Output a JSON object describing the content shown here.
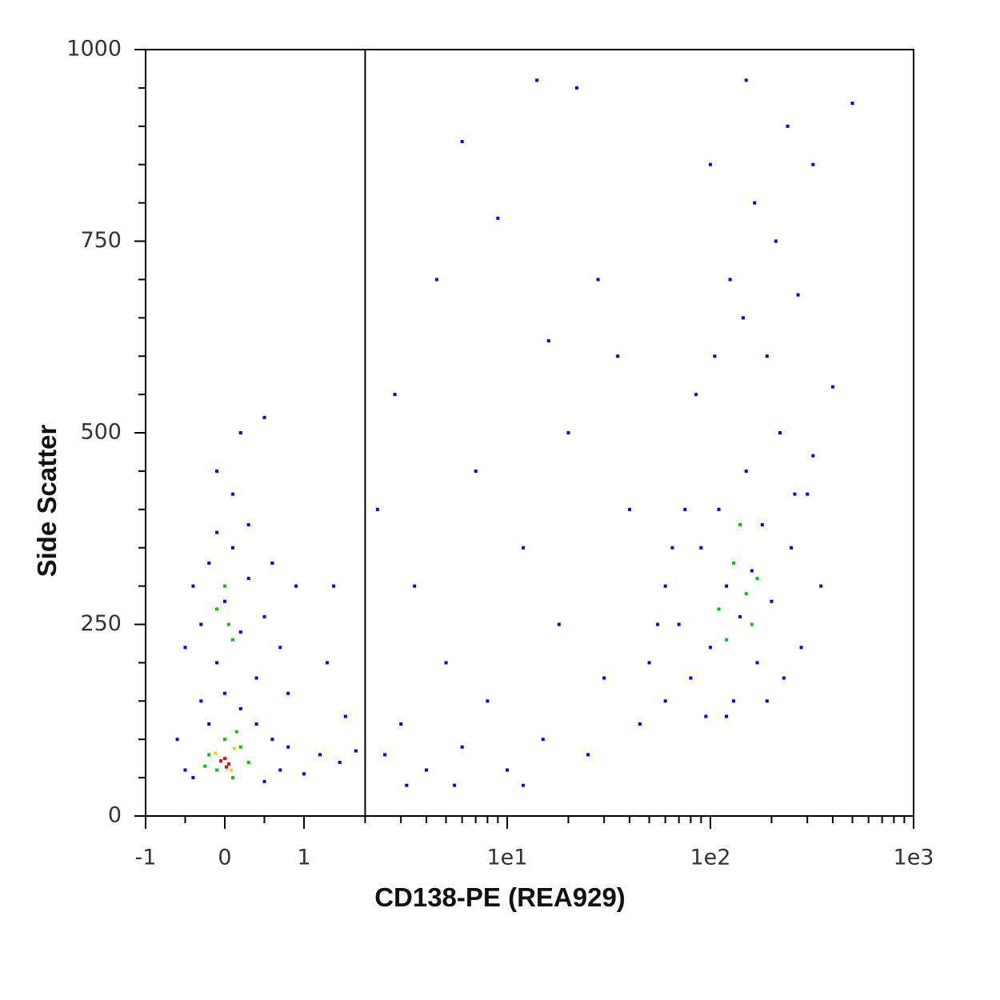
{
  "chart_data": {
    "type": "scatter",
    "x_label": "CD138-PE (REA929)",
    "y_label": "Side Scatter",
    "xscale": "biexponential",
    "xlim": [
      -1,
      1000
    ],
    "ylim": [
      0,
      1000
    ],
    "xticks": [
      -1,
      0,
      1,
      {
        "value": 10,
        "label": "1e1"
      },
      {
        "value": 100,
        "label": "1e2"
      },
      {
        "value": 1000,
        "label": "1e3"
      }
    ],
    "xminorticks": [
      -0.5,
      0.5,
      2,
      3,
      4,
      5,
      6,
      7,
      8,
      9,
      20,
      30,
      40,
      50,
      60,
      70,
      80,
      90,
      200,
      300,
      400,
      500,
      600,
      700,
      800,
      900
    ],
    "yticks": [
      0,
      250,
      500,
      750,
      1000
    ],
    "yminorticks": [
      50,
      100,
      150,
      200,
      300,
      350,
      400,
      450,
      550,
      600,
      650,
      700,
      800,
      850,
      900,
      950
    ],
    "gate": 2,
    "series": [
      {
        "color": "#0000ff",
        "x": [
          -0.4,
          -0.3,
          -0.2,
          -0.1,
          0,
          0.1,
          0.2,
          0.3,
          0.4,
          0.5,
          -0.3,
          -0.2,
          0,
          0.2,
          0.4,
          0.6,
          0.8,
          1.2,
          1.5,
          1.8,
          -0.5,
          -0.4,
          0.5,
          0.7,
          1,
          0.3,
          -0.1,
          0.6,
          0.7,
          -0.6,
          0.1,
          0.2,
          -0.1,
          0.9,
          1.3,
          0.5,
          -0.5,
          0.8,
          1.6,
          1.4,
          2.5,
          3,
          4,
          3.5,
          5,
          6,
          7,
          8,
          10,
          12,
          15,
          18,
          20,
          25,
          30,
          35,
          2.8,
          4.5,
          6,
          9,
          14,
          22,
          28,
          40,
          45,
          3.2,
          5.5,
          16,
          12,
          2.3,
          50,
          60,
          70,
          80,
          90,
          100,
          110,
          120,
          130,
          140,
          150,
          160,
          170,
          180,
          200,
          220,
          250,
          280,
          300,
          60,
          75,
          85,
          95,
          105,
          125,
          145,
          165,
          190,
          210,
          240,
          270,
          320,
          400,
          500,
          150,
          100,
          55,
          65,
          230,
          190,
          120,
          260,
          350,
          320
        ],
        "y": [
          300,
          250,
          330,
          200,
          280,
          350,
          240,
          310,
          180,
          260,
          150,
          120,
          160,
          140,
          120,
          100,
          90,
          80,
          70,
          85,
          60,
          50,
          45,
          60,
          55,
          380,
          370,
          330,
          220,
          100,
          420,
          500,
          450,
          300,
          200,
          520,
          220,
          160,
          130,
          300,
          80,
          120,
          60,
          300,
          200,
          90,
          450,
          150,
          60,
          350,
          100,
          250,
          500,
          80,
          180,
          600,
          550,
          700,
          880,
          780,
          960,
          950,
          700,
          400,
          120,
          40,
          40,
          620,
          40,
          400,
          200,
          300,
          250,
          180,
          350,
          220,
          400,
          300,
          150,
          260,
          450,
          320,
          200,
          380,
          280,
          500,
          350,
          220,
          420,
          150,
          400,
          550,
          130,
          600,
          700,
          650,
          800,
          600,
          750,
          900,
          680,
          850,
          560,
          930,
          960,
          850,
          250,
          350,
          180,
          150,
          130,
          420,
          300,
          470
        ]
      },
      {
        "color": "#00c800",
        "x": [
          -0.1,
          0.1,
          0,
          0.05,
          -0.2,
          0.2,
          0,
          -0.1,
          0.3,
          0.1,
          0.15,
          -0.25,
          110,
          130,
          150,
          120,
          160,
          140,
          170
        ],
        "y": [
          270,
          230,
          300,
          250,
          80,
          90,
          100,
          60,
          70,
          50,
          110,
          65,
          270,
          330,
          290,
          230,
          250,
          380,
          310
        ]
      },
      {
        "color": "#ffd000",
        "x": [
          0.12,
          -0.12,
          0.08
        ],
        "y": [
          88,
          82,
          60
        ]
      },
      {
        "color": "#ff0000",
        "x": [
          0,
          0.05,
          -0.05,
          0.02
        ],
        "y": [
          75,
          68,
          72,
          64
        ]
      }
    ]
  }
}
